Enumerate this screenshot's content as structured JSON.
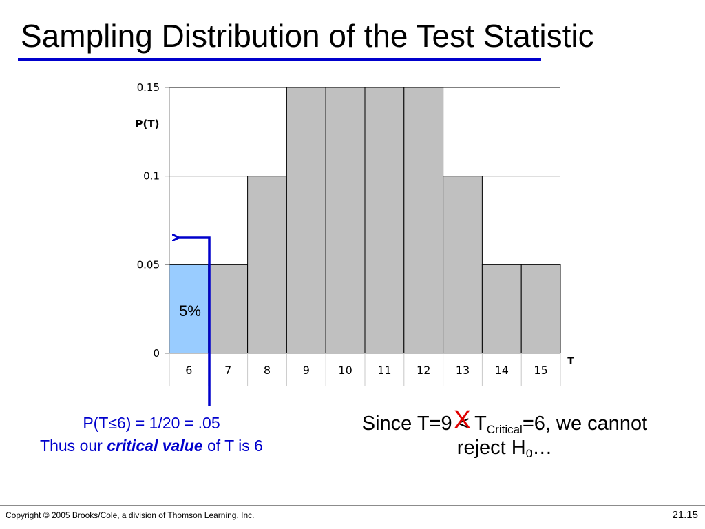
{
  "slide": {
    "title": "Sampling Distribution of the Test Statistic",
    "note_left": {
      "line1": "P(T≤6) = 1/20 = .05",
      "line2_pre": "Thus our ",
      "line2_emph": "critical value",
      "line2_post": " of T is 6"
    },
    "note_right": {
      "pre": "Since T=9 ",
      "op": "<",
      "cross": "X",
      "t": " T",
      "sub": "Critical",
      "post": "=6, we cannot",
      "line2": "reject H",
      "line2_sub": "0",
      "line2_end": "…"
    },
    "footer": {
      "copyright": "Copyright © 2005 Brooks/Cole, a division of Thomson Learning, Inc.",
      "page": "21.15"
    }
  },
  "colors": {
    "accent": "#0000cc",
    "bar": "#c0c0c0",
    "highlight": "#99ccff",
    "cross": "#e00000"
  },
  "chart_data": {
    "type": "bar",
    "categories": [
      "6",
      "7",
      "8",
      "9",
      "10",
      "11",
      "12",
      "13",
      "14",
      "15"
    ],
    "values": [
      0.05,
      0.05,
      0.1,
      0.15,
      0.15,
      0.15,
      0.15,
      0.1,
      0.05,
      0.05
    ],
    "ylim": [
      0,
      0.15
    ],
    "yticks": [
      "0",
      "0.05",
      "0.1",
      "0.15"
    ],
    "ylabel": "P(T)",
    "xlabel": "T",
    "highlight_index": 0,
    "highlight_label": "5%",
    "grid": true
  }
}
